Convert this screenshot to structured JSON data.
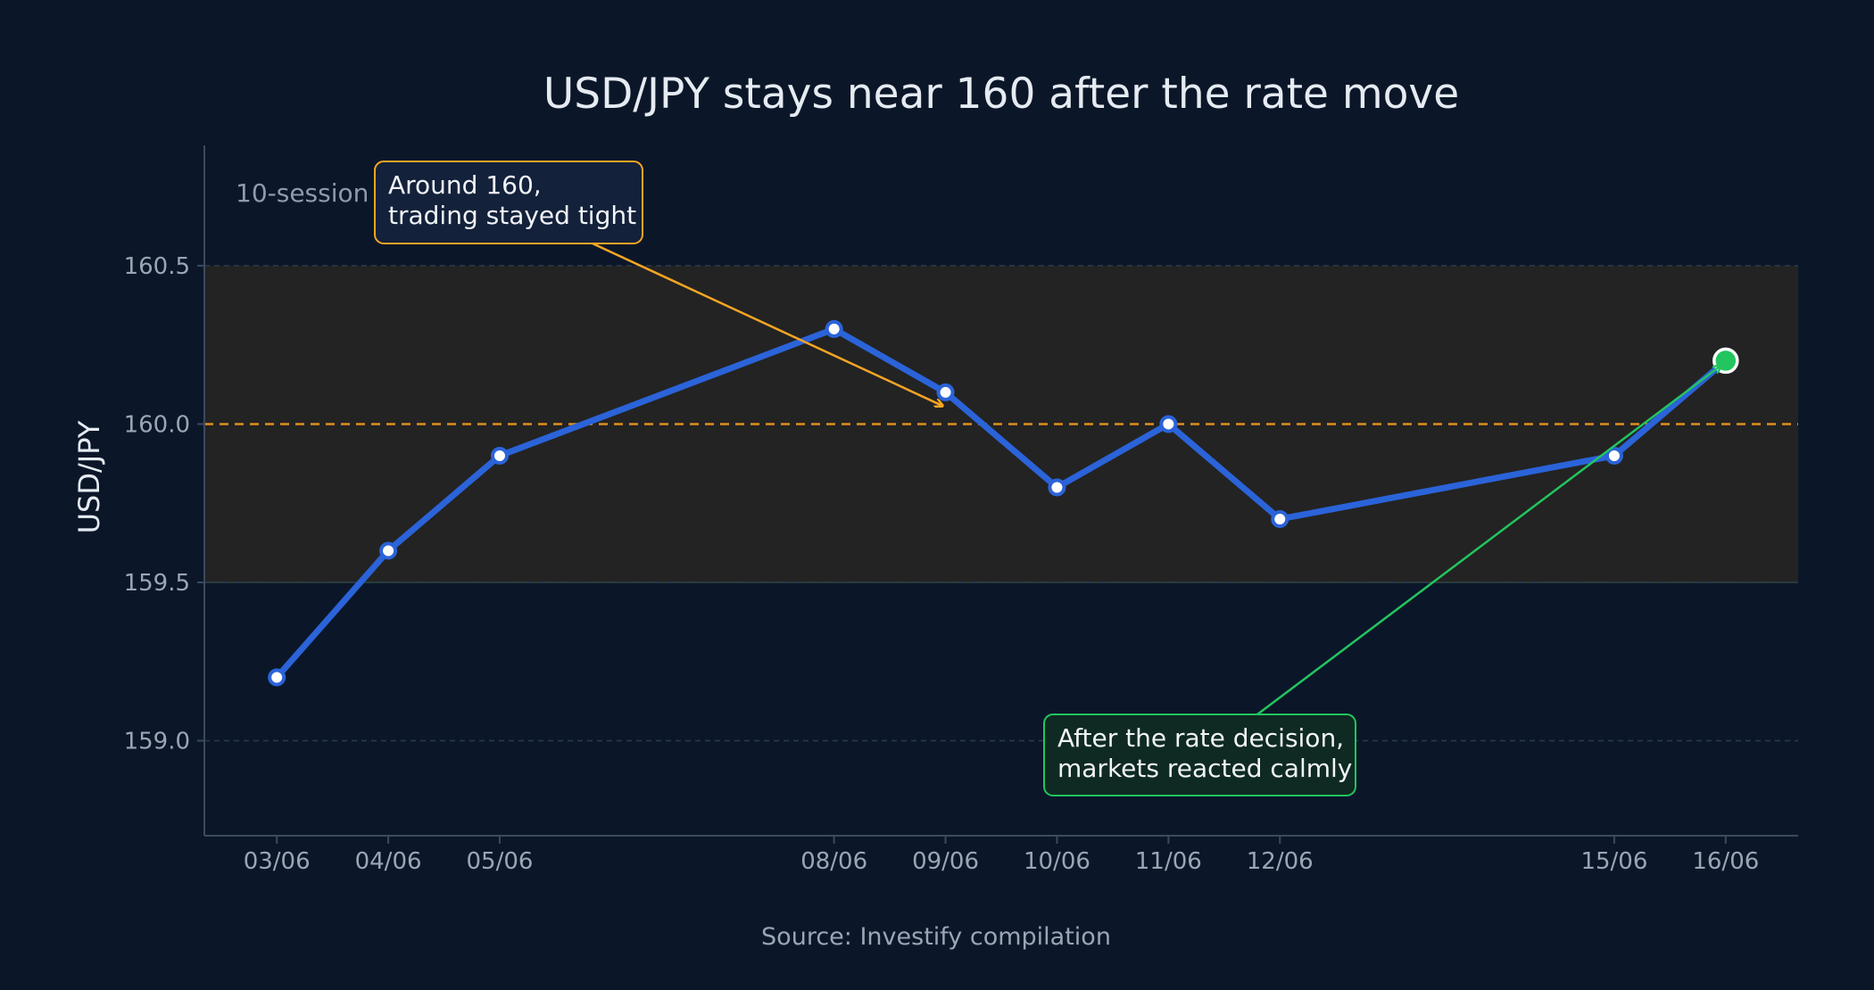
{
  "chart_data": {
    "type": "line",
    "title": "USD/JPY stays near 160 after the rate move",
    "ylabel": "USD/JPY",
    "xlabel": "",
    "source": "Source: Investify compilation",
    "x": [
      "03/06",
      "04/06",
      "05/06",
      "08/06",
      "09/06",
      "10/06",
      "11/06",
      "12/06",
      "15/06",
      "16/06"
    ],
    "x_day_numbers": [
      3,
      4,
      5,
      8,
      9,
      10,
      11,
      12,
      15,
      16
    ],
    "values": [
      159.2,
      159.6,
      159.9,
      160.3,
      160.1,
      159.8,
      160.0,
      159.7,
      159.9,
      160.2
    ],
    "ylim": [
      158.7,
      160.88
    ],
    "xlim": [
      2.35,
      16.65
    ],
    "yticks": [
      159.0,
      159.5,
      160.0,
      160.5
    ],
    "ytick_labels": [
      "159.0",
      "159.5",
      "160.0",
      "160.5"
    ],
    "band": {
      "y0": 159.5,
      "y1": 160.5,
      "label": "10-session"
    },
    "reference_line": {
      "y": 160.0,
      "style": "dashed"
    },
    "grid": true,
    "highlight_point": {
      "x": "16/06",
      "value": 160.2,
      "color": "#22c55e"
    },
    "annotations": [
      {
        "lines": [
          "Around 160,",
          "trading stayed tight"
        ],
        "target": {
          "x": "09/06",
          "value": 160.05
        },
        "color": "#f5a524"
      },
      {
        "lines": [
          "After the rate decision,",
          "markets reacted calmly"
        ],
        "target": {
          "x": "16/06",
          "value": 160.2
        },
        "color": "#22c55e"
      }
    ],
    "colors": {
      "background": "#0b1729",
      "line": "#2b63d9",
      "marker_fill": "#ffffff",
      "band_fill": "#232323",
      "reference": "#e08e1f",
      "grid": "#2c3a4d",
      "axis": "#3b4a5e"
    }
  }
}
